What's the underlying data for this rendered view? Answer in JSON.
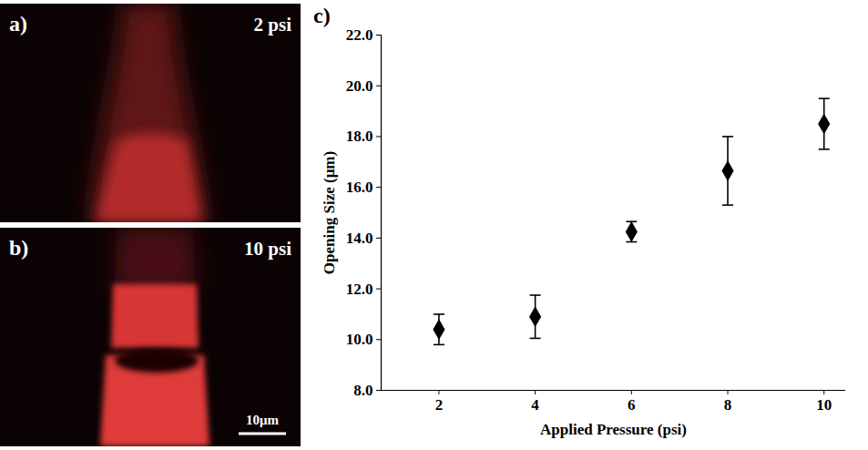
{
  "images": [
    {
      "panel": "a)",
      "label": "2 psi"
    },
    {
      "panel": "b)",
      "label": "10 psi",
      "scale_bar": "10μm"
    }
  ],
  "chart_data": {
    "type": "scatter",
    "panel": "c)",
    "x_label": "Applied Pressure (psi)",
    "y_label": "Opening Size (μm)",
    "x": [
      2,
      4,
      6,
      8,
      10
    ],
    "values": [
      10.4,
      10.9,
      14.25,
      16.65,
      18.5
    ],
    "errors": [
      0.6,
      0.85,
      0.4,
      1.35,
      1.0
    ],
    "color": "#000000",
    "marker": "diamond",
    "xlim": [
      0.8,
      10.45
    ],
    "xticks": [
      2,
      4,
      6,
      8,
      10
    ],
    "ylim": [
      8,
      22
    ],
    "yticks": [
      {
        "value": 8,
        "label": "8.0"
      },
      {
        "value": 10,
        "label": "10.0"
      },
      {
        "value": 12,
        "label": "12.0"
      },
      {
        "value": 14,
        "label": "14.0"
      },
      {
        "value": 16,
        "label": "16.0"
      },
      {
        "value": 18,
        "label": "18.0"
      },
      {
        "value": 20,
        "label": "20.0"
      },
      {
        "value": 22,
        "label": "22.0"
      }
    ],
    "grid": false
  }
}
